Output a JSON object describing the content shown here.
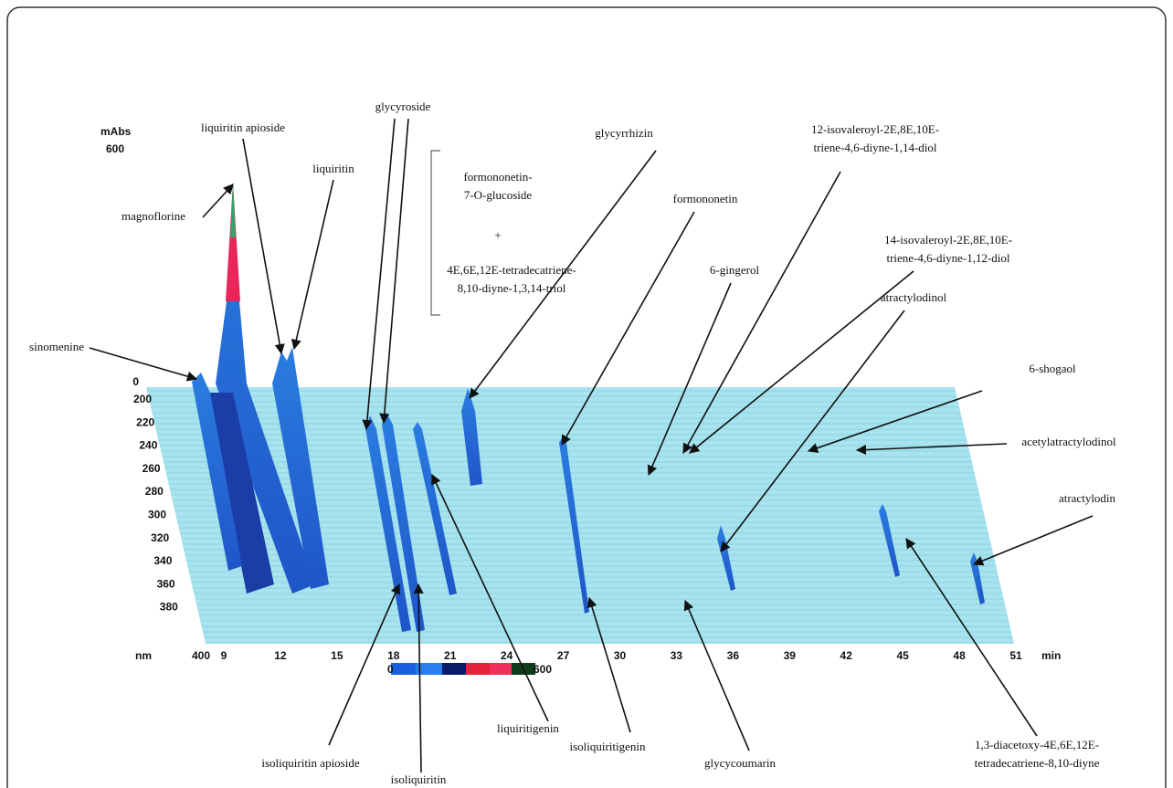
{
  "absorbance_axis": {
    "unit": "mAbs",
    "max": "600",
    "zero": "0"
  },
  "wavelength_axis": {
    "unit": "nm",
    "ticks": [
      "200",
      "220",
      "240",
      "260",
      "280",
      "300",
      "320",
      "340",
      "360",
      "380",
      "400"
    ]
  },
  "time_axis": {
    "unit": "min",
    "ticks": [
      "9",
      "12",
      "15",
      "18",
      "21",
      "24",
      "27",
      "30",
      "33",
      "36",
      "39",
      "42",
      "45",
      "48",
      "51"
    ]
  },
  "color_scale": {
    "min": "0",
    "max": "600"
  },
  "compounds": [
    {
      "lines": [
        "magnoflorine"
      ]
    },
    {
      "lines": [
        "sinomenine"
      ]
    },
    {
      "lines": [
        "liquiritin apioside"
      ]
    },
    {
      "lines": [
        "liquiritin"
      ]
    },
    {
      "lines": [
        "glycyroside"
      ]
    },
    {
      "lines": [
        "formononetin-",
        "7-O-glucoside"
      ]
    },
    {
      "lines": [
        "+"
      ]
    },
    {
      "lines": [
        "4E,6E,12E-tetradecatriene-",
        "8,10-diyne-1,3,14-triol"
      ]
    },
    {
      "lines": [
        "glycyrrhizin"
      ]
    },
    {
      "lines": [
        "formononetin"
      ]
    },
    {
      "lines": [
        "6-gingerol"
      ]
    },
    {
      "lines": [
        "12-isovaleroyl-2E,8E,10E-",
        "triene-4,6-diyne-1,14-diol"
      ]
    },
    {
      "lines": [
        "14-isovaleroyl-2E,8E,10E-",
        "triene-4,6-diyne-1,12-diol"
      ]
    },
    {
      "lines": [
        "atractylodinol"
      ]
    },
    {
      "lines": [
        "6-shogaol"
      ]
    },
    {
      "lines": [
        "acetylatractylodinol"
      ]
    },
    {
      "lines": [
        "atractylodin"
      ]
    },
    {
      "lines": [
        "1,3-diacetoxy-4E,6E,12E-",
        "tetradecatriene-8,10-diyne"
      ]
    },
    {
      "lines": [
        "glycycoumarin"
      ]
    },
    {
      "lines": [
        "isoliquiritigenin"
      ]
    },
    {
      "lines": [
        "liquiritigenin"
      ]
    },
    {
      "lines": [
        "isoliquiritin"
      ]
    },
    {
      "lines": [
        "isoliquiritin apioside"
      ]
    }
  ]
}
